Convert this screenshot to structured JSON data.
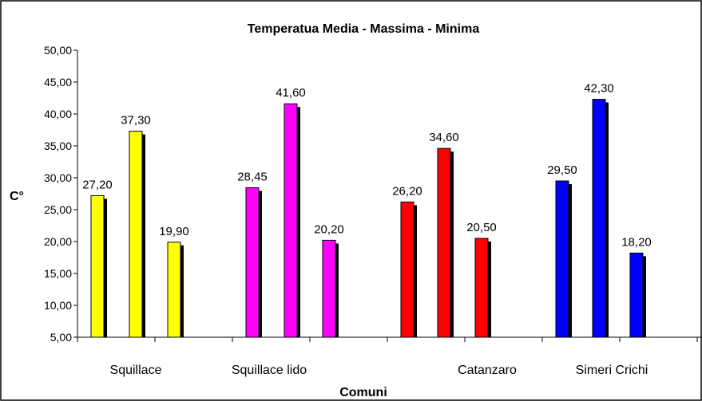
{
  "chart_data": {
    "type": "bar",
    "title": "Temperatua Media - Massima - Minima",
    "xlabel": "Comuni",
    "ylabel": "C°",
    "ylim": [
      5,
      50
    ],
    "ytick_labels": [
      "5,00",
      "10,00",
      "15,00",
      "20,00",
      "25,00",
      "30,00",
      "35,00",
      "40,00",
      "45,00",
      "50,00"
    ],
    "category_labels": [
      "Squillace",
      "Squillace lido",
      "Catanzaro",
      "Simeri Crichi"
    ],
    "groups": [
      {
        "color": "#ffff00",
        "values": [
          27.2,
          37.3,
          19.9
        ],
        "labels": [
          "27,20",
          "37,30",
          "19,90"
        ]
      },
      {
        "color": "#ff00ff",
        "values": [
          28.45,
          41.6,
          20.2
        ],
        "labels": [
          "28,45",
          "41,60",
          "20,20"
        ]
      },
      {
        "color": "#ff0000",
        "values": [
          26.2,
          34.6,
          20.5
        ],
        "labels": [
          "26,20",
          "34,60",
          "20,50"
        ]
      },
      {
        "color": "#0000ff",
        "values": [
          29.5,
          42.3,
          18.2
        ],
        "labels": [
          "29,50",
          "42,30",
          "18,20"
        ]
      }
    ],
    "grid": false,
    "legend": "none"
  }
}
